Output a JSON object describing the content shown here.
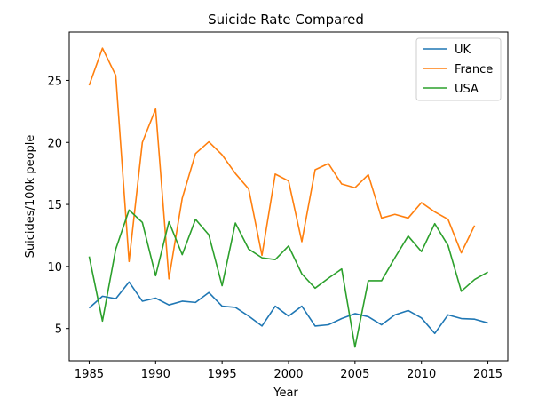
{
  "chart_data": {
    "type": "line",
    "title": "Suicide Rate Compared",
    "xlabel": "Year",
    "ylabel": "Suicides/100k people",
    "xlim": [
      1983.5,
      2016.5
    ],
    "ylim": [
      2.4,
      28.9
    ],
    "xticks": [
      1985,
      1990,
      1995,
      2000,
      2005,
      2010,
      2015
    ],
    "yticks": [
      5,
      10,
      15,
      20,
      25
    ],
    "grid": false,
    "legend_position": "top-right",
    "x": [
      1985,
      1986,
      1987,
      1988,
      1989,
      1990,
      1991,
      1992,
      1993,
      1994,
      1995,
      1996,
      1997,
      1998,
      1999,
      2000,
      2001,
      2002,
      2003,
      2004,
      2005,
      2006,
      2007,
      2008,
      2009,
      2010,
      2011,
      2012,
      2013,
      2014,
      2015
    ],
    "series": [
      {
        "name": "UK",
        "color": "#1f77b4",
        "values": [
          6.65,
          7.6,
          7.4,
          8.75,
          7.2,
          7.45,
          6.9,
          7.2,
          7.1,
          7.9,
          6.8,
          6.7,
          6.0,
          5.2,
          6.8,
          6.0,
          6.8,
          5.2,
          5.3,
          5.8,
          6.2,
          5.95,
          5.3,
          6.1,
          6.45,
          5.85,
          4.6,
          6.1,
          5.8,
          5.75,
          5.45
        ]
      },
      {
        "name": "France",
        "color": "#ff7f0e",
        "values": [
          24.6,
          27.6,
          25.4,
          10.4,
          20.0,
          22.7,
          9.0,
          15.5,
          19.1,
          20.05,
          19.0,
          17.5,
          16.25,
          10.9,
          17.45,
          16.9,
          12.0,
          17.8,
          18.3,
          16.65,
          16.35,
          17.4,
          13.9,
          14.2,
          13.9,
          15.15,
          14.4,
          13.8,
          11.1,
          13.3,
          null
        ]
      },
      {
        "name": "USA",
        "color": "#2ca02c",
        "values": [
          10.8,
          5.6,
          11.4,
          14.55,
          13.55,
          9.25,
          13.6,
          10.95,
          13.8,
          12.55,
          8.45,
          13.5,
          11.4,
          10.7,
          10.55,
          11.65,
          9.4,
          8.25,
          9.05,
          9.8,
          3.5,
          8.85,
          8.85,
          10.7,
          12.45,
          11.2,
          13.45,
          11.7,
          8.0,
          8.95,
          9.55
        ]
      }
    ]
  }
}
